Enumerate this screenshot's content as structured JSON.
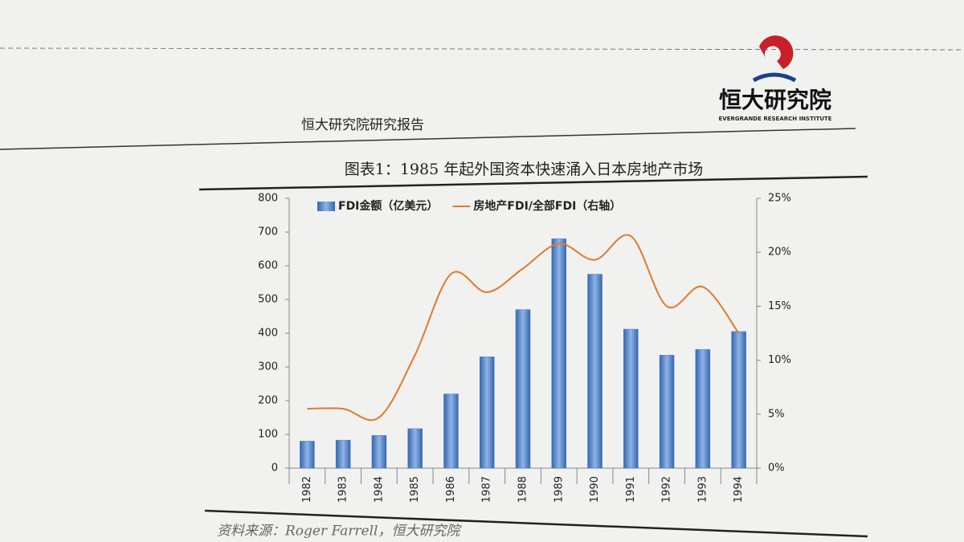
{
  "header": {
    "report": "恒大研究院研究报告",
    "logo": "恒大研究院",
    "logo_en": "EVERGRANDE RESEARCH INSTITUTE"
  },
  "chart_data": {
    "type": "bar",
    "title": "图表1：1985 年起外国资本快速涌入日本房地产市场",
    "categories": [
      "1982",
      "1983",
      "1984",
      "1985",
      "1986",
      "1987",
      "1988",
      "1989",
      "1990",
      "1991",
      "1992",
      "1993",
      "1994"
    ],
    "series": [
      {
        "name": "FDI金额（亿美元）",
        "color": "#4a7cc0",
        "values": [
          80,
          83,
          97,
          117,
          220,
          330,
          470,
          680,
          575,
          412,
          335,
          352,
          405
        ]
      },
      {
        "name": "房地产FDI/全部FDI（右轴）",
        "color": "#e07a2e",
        "type": "line",
        "axis": "y2",
        "values": [
          5.5,
          5.5,
          4.7,
          10.5,
          18,
          16.3,
          18.5,
          20.8,
          19.3,
          21.5,
          15,
          16.8,
          12.5
        ]
      }
    ],
    "ylim": [
      0,
      800
    ],
    "yticks": [
      0,
      100,
      200,
      300,
      400,
      500,
      600,
      700,
      800
    ],
    "y2lim": [
      0,
      25
    ],
    "y2ticks": [
      {
        "value": 0,
        "label": "0%"
      },
      {
        "value": 5,
        "label": "5%"
      },
      {
        "value": 10,
        "label": "10%"
      },
      {
        "value": 15,
        "label": "15%"
      },
      {
        "value": 20,
        "label": "20%"
      },
      {
        "value": 25,
        "label": "25%"
      }
    ],
    "legend": "top"
  },
  "source": "资料来源：Roger Farrell，恒大研究院"
}
